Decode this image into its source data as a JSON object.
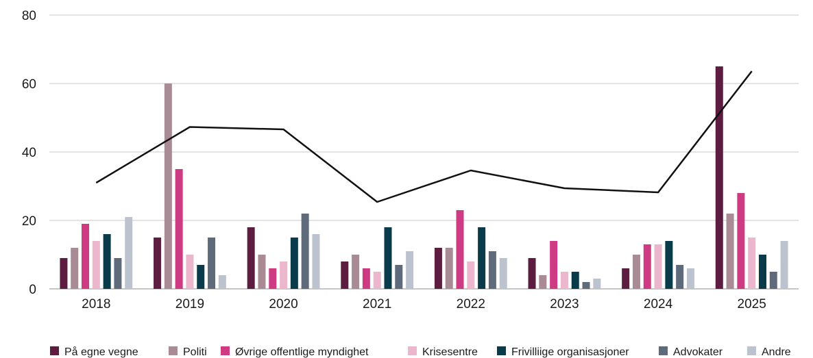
{
  "chart_data": {
    "type": "bar",
    "title": "",
    "xlabel": "",
    "ylabel": "",
    "categories": [
      "2018",
      "2019",
      "2020",
      "2021",
      "2022",
      "2023",
      "2024",
      "2025"
    ],
    "ylim": [
      0,
      80
    ],
    "yticks": [
      0,
      20,
      40,
      60,
      80
    ],
    "ytick_labels": [
      "0",
      "20",
      "40",
      "60",
      "80"
    ],
    "grid": "horizontal",
    "legend_position": "bottom",
    "series": [
      {
        "name": "På egne vegne",
        "color": "#5c1d40",
        "values": [
          9,
          15,
          18,
          8,
          12,
          9,
          6,
          65
        ]
      },
      {
        "name": "Politi",
        "color": "#a88b95",
        "values": [
          12,
          60,
          10,
          10,
          12,
          4,
          10,
          22
        ]
      },
      {
        "name": "Øvrige offentlige myndighet",
        "color": "#cf3b83",
        "values": [
          19,
          35,
          6,
          6,
          23,
          14,
          13,
          28
        ]
      },
      {
        "name": "Krisesentre",
        "color": "#ecb7cc",
        "values": [
          14,
          10,
          8,
          5,
          8,
          5,
          13,
          15
        ]
      },
      {
        "name": "Frivilliige organisasjoner",
        "color": "#0a3b4a",
        "values": [
          16,
          7,
          15,
          18,
          18,
          5,
          14,
          10
        ]
      },
      {
        "name": "Advokater",
        "color": "#5f6b7b",
        "values": [
          9,
          15,
          22,
          7,
          11,
          2,
          7,
          5
        ]
      },
      {
        "name": "Andre",
        "color": "#bcc3ce",
        "values": [
          21,
          4,
          16,
          11,
          9,
          3,
          6,
          14
        ]
      }
    ],
    "line": {
      "color": "#111111",
      "values": [
        31,
        47.3,
        46.6,
        25.4,
        34.6,
        29.4,
        28.2,
        63.6
      ]
    }
  }
}
